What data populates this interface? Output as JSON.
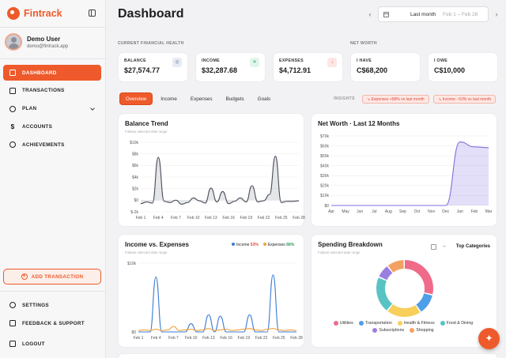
{
  "app": {
    "name": "Fintrack"
  },
  "user": {
    "name": "Demo User",
    "email": "demo@fintrack.app"
  },
  "nav": [
    {
      "label": "DASHBOARD",
      "icon": "home-icon"
    },
    {
      "label": "TRANSACTIONS",
      "icon": "card-icon"
    },
    {
      "label": "PLAN",
      "icon": "pie-icon"
    },
    {
      "label": "ACCOUNTS",
      "icon": "dollar-icon"
    },
    {
      "label": "ACHIEVEMENTS",
      "icon": "trophy-icon"
    }
  ],
  "add_transaction": "ADD TRANSACTION",
  "bottom_nav": [
    {
      "label": "SETTINGS",
      "icon": "gear-icon"
    },
    {
      "label": "FEEDBACK & SUPPORT",
      "icon": "chat-icon"
    },
    {
      "label": "LOGOUT",
      "icon": "logout-icon"
    }
  ],
  "header": {
    "title": "Dashboard",
    "period": "Last month",
    "range": "Feb 1 – Feb 28",
    "prev": "‹",
    "next": "›"
  },
  "sections": {
    "current": "CURRENT FINANCIAL HEALTH",
    "networth": "NET WORTH"
  },
  "stats": [
    {
      "label": "BALANCE",
      "value": "$27,574.77",
      "icon": "scale-icon",
      "color": "#e6ebf5"
    },
    {
      "label": "INCOME",
      "value": "$32,287.68",
      "icon": "income-icon",
      "color": "#e1f6ea"
    },
    {
      "label": "EXPENSES",
      "value": "$4,712.91",
      "icon": "expense-icon",
      "color": "#fde6e4"
    },
    {
      "label": "I HAVE",
      "value": "C$68,200"
    },
    {
      "label": "I OWE",
      "value": "C$10,000"
    }
  ],
  "tabs": [
    "Overview",
    "Income",
    "Expenses",
    "Budgets",
    "Goals"
  ],
  "insights": {
    "label": "INSIGHTS",
    "pills": [
      "↘ Expenses +89% vs last month",
      "↘ Income −53% vs last month"
    ]
  },
  "cards": {
    "balance": {
      "title": "Balance Trend",
      "sub": "Follows selected date range"
    },
    "networth": {
      "title": "Net Worth · Last 12 Months"
    },
    "income_expenses": {
      "title": "Income vs. Expenses",
      "sub": "Follows selected date range",
      "legend": [
        {
          "label": "Income",
          "pct": "53%",
          "color": "#3b7bd6"
        },
        {
          "label": "Expenses",
          "pct": "88%",
          "color": "#f2a23a"
        }
      ]
    },
    "spending": {
      "title": "Spending Breakdown",
      "sub": "Follows selected date range",
      "mode": "Top Categories"
    }
  },
  "colors": {
    "accent": "#ee5a2b"
  },
  "chart_data": [
    {
      "type": "area",
      "title": "Balance Trend",
      "x": [
        "Feb 1",
        "Feb 2",
        "Feb 3",
        "Feb 4",
        "Feb 5",
        "Feb 6",
        "Feb 7",
        "Feb 8",
        "Feb 9",
        "Feb 10",
        "Feb 11",
        "Feb 12",
        "Feb 13",
        "Feb 14",
        "Feb 15",
        "Feb 16",
        "Feb 17",
        "Feb 18",
        "Feb 19",
        "Feb 20",
        "Feb 21",
        "Feb 22",
        "Feb 23",
        "Feb 24",
        "Feb 25",
        "Feb 26",
        "Feb 27",
        "Feb 28"
      ],
      "xticks": [
        "Feb 1",
        "Feb 4",
        "Feb 7",
        "Feb 10",
        "Feb 13",
        "Feb 16",
        "Feb 19",
        "Feb 22",
        "Feb 25",
        "Feb 28"
      ],
      "values": [
        -600,
        -300,
        -500,
        7400,
        -200,
        -400,
        0,
        -700,
        -400,
        400,
        -100,
        -500,
        2100,
        -300,
        1500,
        -600,
        -200,
        400,
        -300,
        2500,
        -300,
        -100,
        1000,
        7600,
        -400,
        -200,
        -200,
        -100
      ],
      "ylim": [
        -2000,
        10000
      ],
      "yticks": [
        -2000,
        0,
        2000,
        4000,
        6000,
        8000,
        10000
      ],
      "ytick_labels": [
        "$-2k",
        "$0",
        "$2k",
        "$4k",
        "$6k",
        "$8k",
        "$10k"
      ],
      "color": "#4a4f5c"
    },
    {
      "type": "area",
      "title": "Net Worth · Last 12 Months",
      "categories": [
        "Apr",
        "May",
        "Jun",
        "Jul",
        "Aug",
        "Sep",
        "Oct",
        "Nov",
        "Dec",
        "Jan",
        "Feb",
        "Mar"
      ],
      "values": [
        0,
        0,
        0,
        0,
        0,
        0,
        0,
        0,
        0,
        64000,
        59000,
        58200
      ],
      "ylim": [
        0,
        70000
      ],
      "yticks": [
        0,
        10000,
        20000,
        30000,
        40000,
        50000,
        60000,
        70000
      ],
      "ytick_labels": [
        "$0",
        "$10k",
        "$20k",
        "$30k",
        "$40k",
        "$50k",
        "$60k",
        "$70k"
      ],
      "color": "#7e6ee0"
    },
    {
      "type": "line",
      "title": "Income vs. Expenses",
      "x": [
        "Feb 1",
        "Feb 2",
        "Feb 3",
        "Feb 4",
        "Feb 5",
        "Feb 6",
        "Feb 7",
        "Feb 8",
        "Feb 9",
        "Feb 10",
        "Feb 11",
        "Feb 12",
        "Feb 13",
        "Feb 14",
        "Feb 15",
        "Feb 16",
        "Feb 17",
        "Feb 18",
        "Feb 19",
        "Feb 20",
        "Feb 21",
        "Feb 22",
        "Feb 23",
        "Feb 24",
        "Feb 25",
        "Feb 26",
        "Feb 27",
        "Feb 28"
      ],
      "xticks": [
        "Feb 1",
        "Feb 4",
        "Feb 7",
        "Feb 10",
        "Feb 13",
        "Feb 16",
        "Feb 19",
        "Feb 22",
        "Feb 25",
        "Feb 28"
      ],
      "series": [
        {
          "name": "Income",
          "color": "#3b7bd6",
          "values": [
            0,
            0,
            0,
            8000,
            0,
            0,
            0,
            0,
            0,
            1200,
            0,
            0,
            2500,
            0,
            2300,
            0,
            0,
            0,
            0,
            2500,
            0,
            0,
            0,
            8300,
            0,
            0,
            0,
            0
          ]
        },
        {
          "name": "Expenses",
          "color": "#f2a23a",
          "values": [
            200,
            300,
            200,
            400,
            200,
            300,
            800,
            200,
            300,
            400,
            200,
            300,
            500,
            200,
            300,
            400,
            200,
            300,
            400,
            500,
            300,
            200,
            400,
            500,
            300,
            200,
            300,
            200
          ]
        }
      ],
      "ylim": [
        0,
        10000
      ],
      "yticks": [
        0,
        10000
      ],
      "ytick_labels": [
        "$0",
        "$10k"
      ]
    },
    {
      "type": "pie",
      "title": "Spending Breakdown",
      "labels": [
        "Utilities",
        "Transportation",
        "Health & Fitness",
        "Food & Dining",
        "Subscriptions",
        "Shopping"
      ],
      "values": [
        29,
        12,
        20,
        21,
        8,
        10
      ],
      "colors": [
        "#f06a8a",
        "#4f9ee8",
        "#f7cf5a",
        "#59c3c3",
        "#9b7fe0",
        "#f4a261"
      ]
    }
  ]
}
